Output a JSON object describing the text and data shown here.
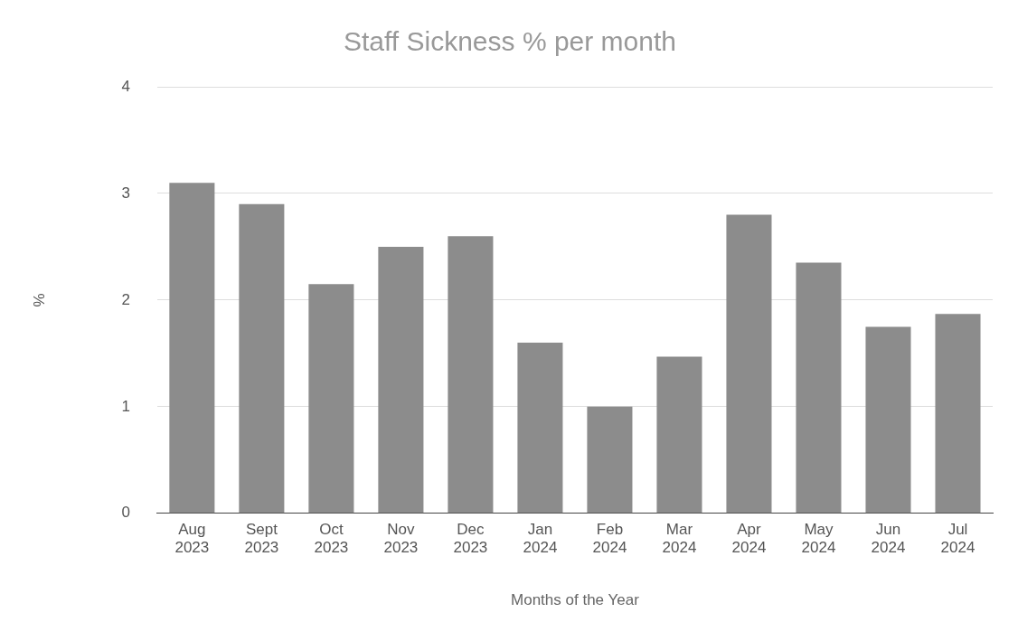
{
  "chart_data": {
    "type": "bar",
    "title": "Staff Sickness % per month",
    "xlabel": "Months of the Year",
    "ylabel": "%",
    "categories": [
      "Aug 2023",
      "Sept 2023",
      "Oct 2023",
      "Nov 2023",
      "Dec 2023",
      "Jan 2024",
      "Feb 2024",
      "Mar 2024",
      "Apr 2024",
      "May 2024",
      "Jun 2024",
      "Jul 2024"
    ],
    "values": [
      3.1,
      2.9,
      2.15,
      2.5,
      2.6,
      1.6,
      1.0,
      1.47,
      2.8,
      2.35,
      1.75,
      1.87
    ],
    "color": "#8c8c8c",
    "ylim": [
      0,
      4
    ],
    "yticks": [
      0,
      1,
      2,
      3,
      4
    ],
    "grid": "y",
    "legend": false
  }
}
